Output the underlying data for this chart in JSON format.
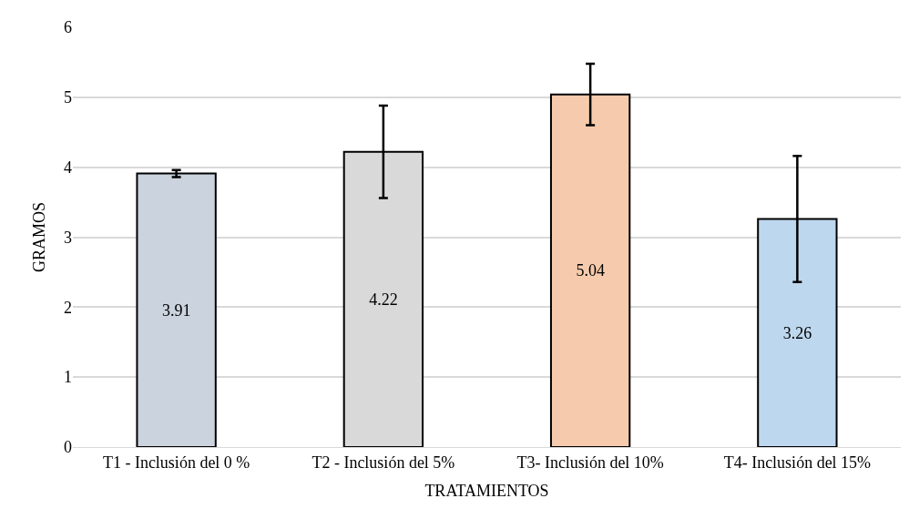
{
  "chart_data": {
    "type": "bar",
    "xlabel": "TRATAMIENTOS",
    "ylabel": "GRAMOS",
    "categories": [
      "T1 - Inclusión del 0 %",
      "T2 - Inclusión del 5%",
      "T3- Inclusión del 10%",
      "T4- Inclusión del 15%"
    ],
    "values": [
      3.91,
      4.22,
      5.04,
      3.26
    ],
    "colors": [
      "#cbd3de",
      "#d9d9d9",
      "#f6cbad",
      "#bdd7ee"
    ],
    "errors": [
      0.05,
      0.66,
      0.44,
      0.9
    ],
    "ylim": [
      0,
      6
    ],
    "yticks": [
      0,
      1,
      2,
      3,
      4,
      5,
      6
    ],
    "grid": "y",
    "data_labels": true,
    "legend": false
  }
}
